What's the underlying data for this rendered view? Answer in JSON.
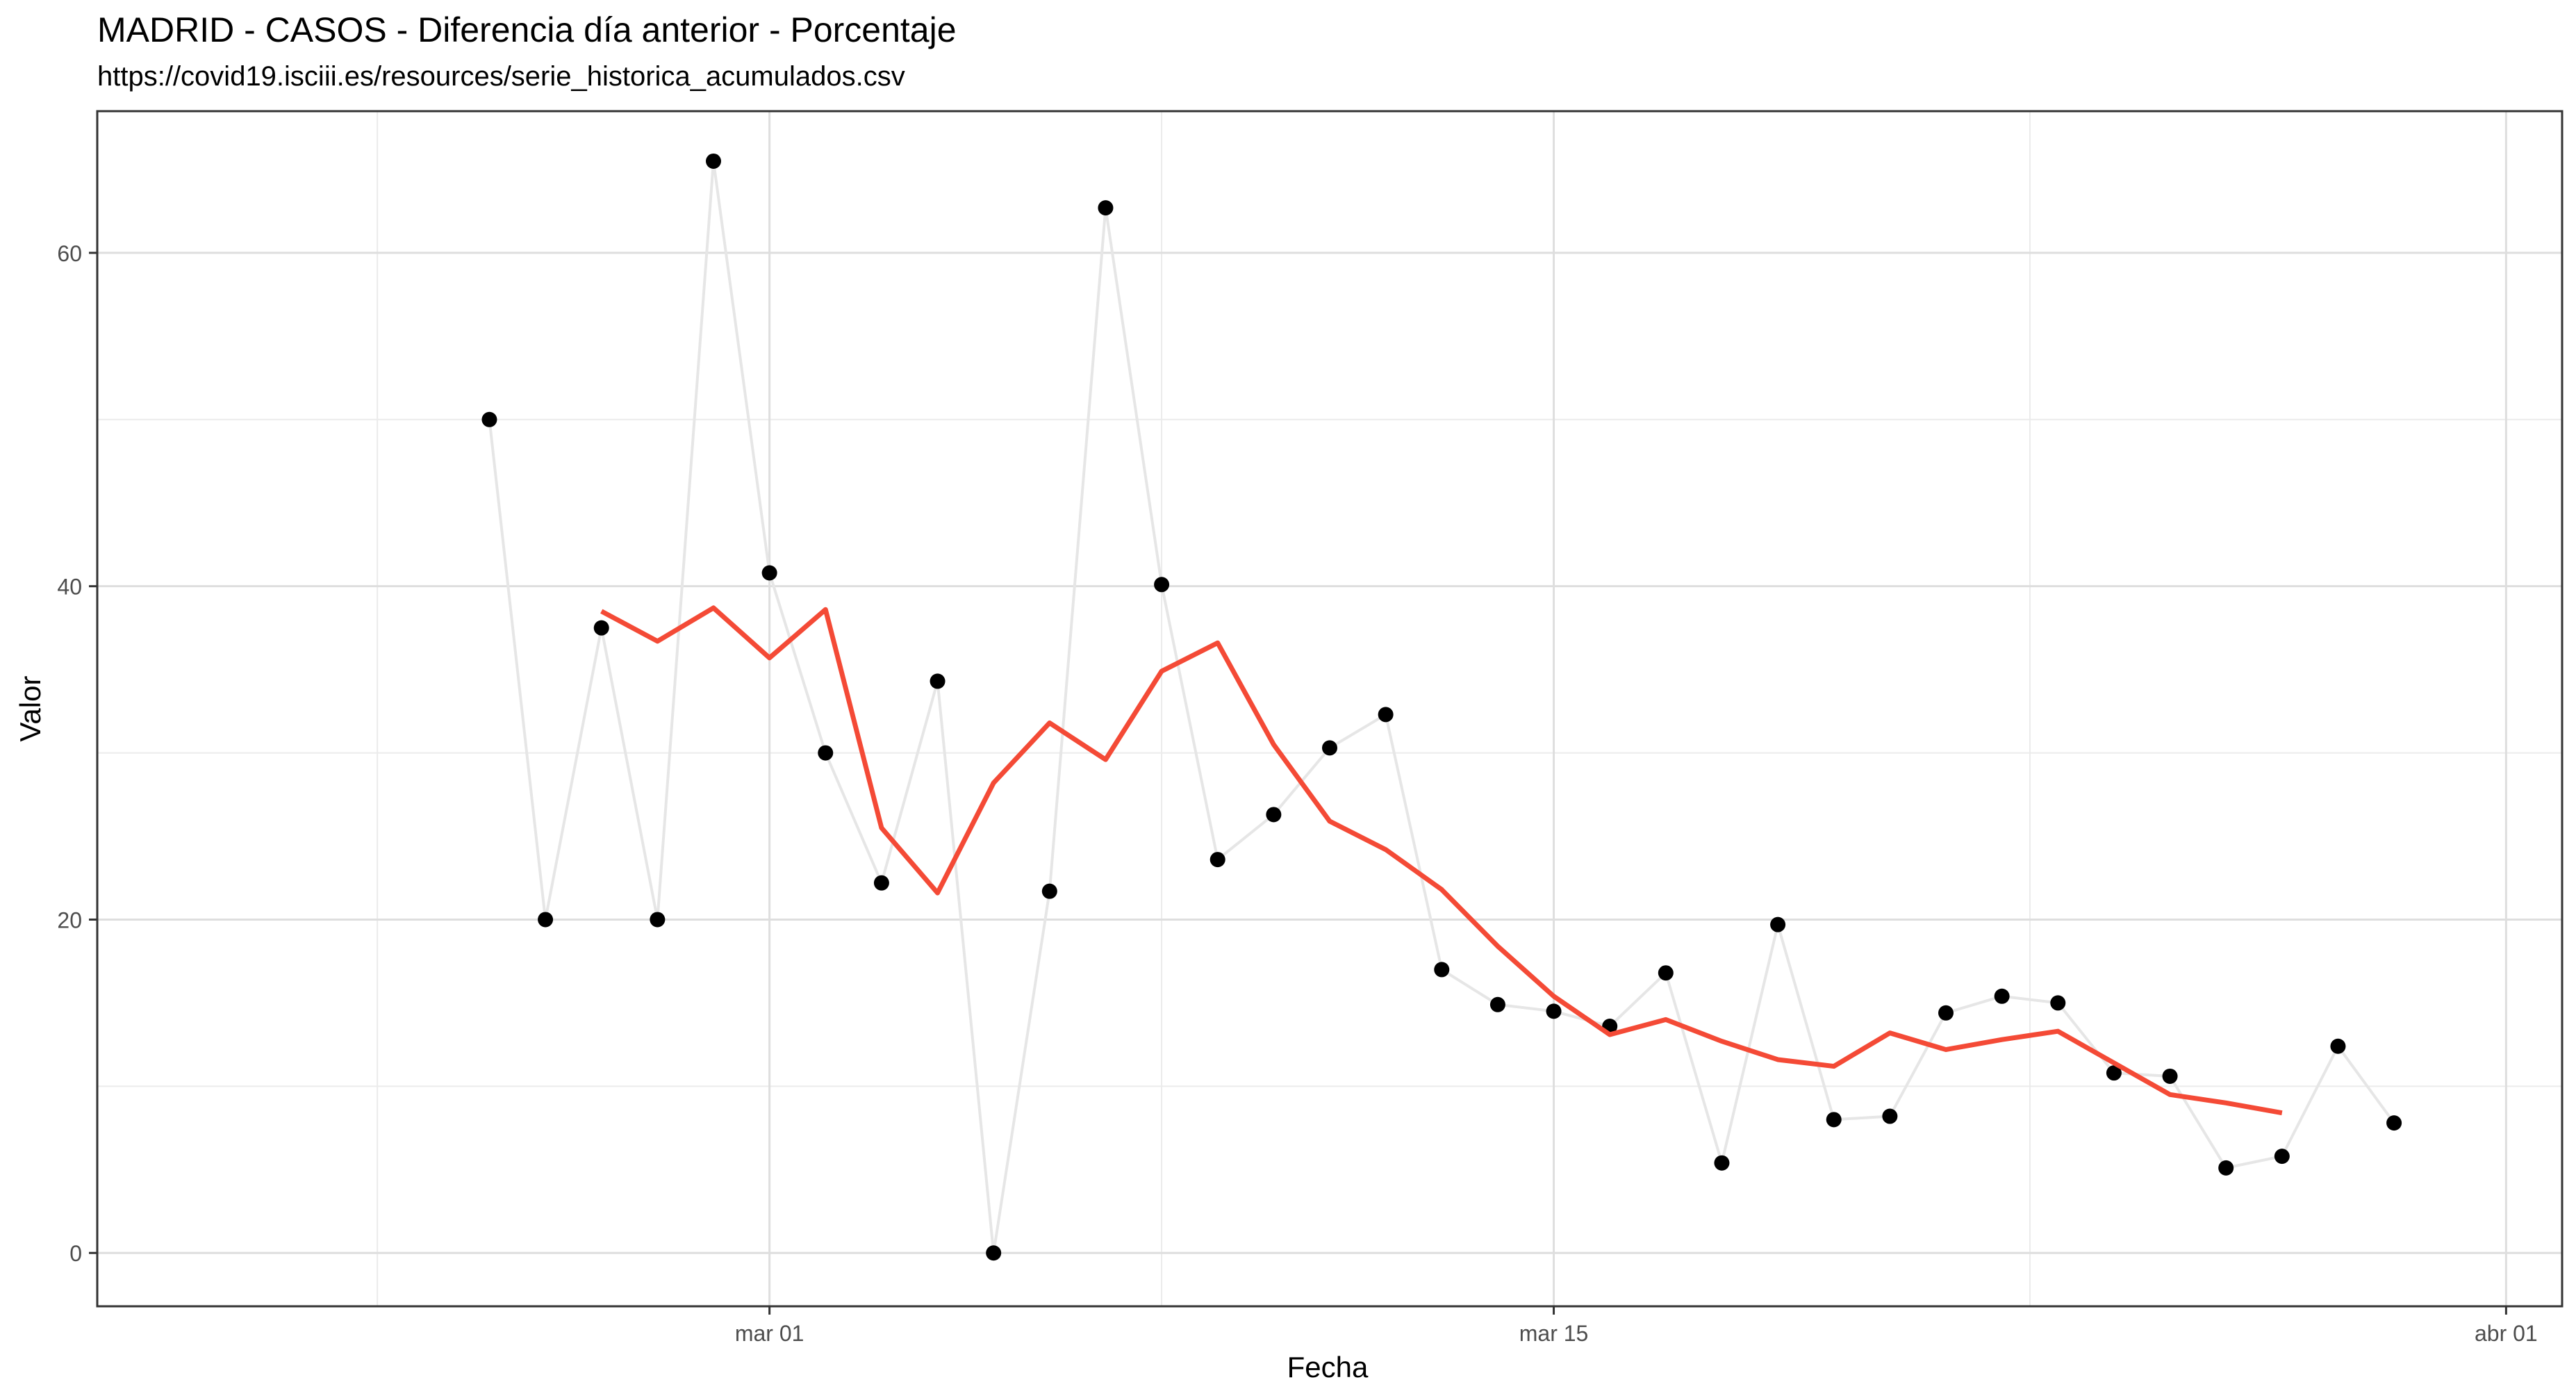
{
  "chart_data": {
    "type": "line",
    "title": "MADRID - CASOS - Diferencia día anterior - Porcentaje",
    "subtitle": "https://covid19.isciii.es/resources/serie_historica_acumulados.csv",
    "xlabel": "Fecha",
    "ylabel": "Valor",
    "x_tick_labels": [
      {
        "date": "2020-03-01",
        "label": "mar 01"
      },
      {
        "date": "2020-03-15",
        "label": "mar 15"
      },
      {
        "date": "2020-04-01",
        "label": "abr 01"
      }
    ],
    "y_ticks": [
      0,
      20,
      40,
      60
    ],
    "xlim": [
      "2020-02-18",
      "2020-04-02"
    ],
    "ylim": [
      -3.2,
      68.5
    ],
    "grid": true,
    "series": [
      {
        "style": "points-with-line",
        "color": "#000000",
        "line_color": "#e6e6e6",
        "points": [
          {
            "x": "2020-02-25",
            "y": 50.0
          },
          {
            "x": "2020-02-26",
            "y": 20.0
          },
          {
            "x": "2020-02-27",
            "y": 37.5
          },
          {
            "x": "2020-02-28",
            "y": 20.0
          },
          {
            "x": "2020-02-29",
            "y": 65.5
          },
          {
            "x": "2020-03-01",
            "y": 40.8
          },
          {
            "x": "2020-03-02",
            "y": 30.0
          },
          {
            "x": "2020-03-03",
            "y": 22.2
          },
          {
            "x": "2020-03-04",
            "y": 34.3
          },
          {
            "x": "2020-03-05",
            "y": 0.0
          },
          {
            "x": "2020-03-06",
            "y": 21.7
          },
          {
            "x": "2020-03-07",
            "y": 62.7
          },
          {
            "x": "2020-03-08",
            "y": 40.1
          },
          {
            "x": "2020-03-09",
            "y": 23.6
          },
          {
            "x": "2020-03-10",
            "y": 26.3
          },
          {
            "x": "2020-03-11",
            "y": 30.3
          },
          {
            "x": "2020-03-12",
            "y": 32.3
          },
          {
            "x": "2020-03-13",
            "y": 17.0
          },
          {
            "x": "2020-03-14",
            "y": 14.9
          },
          {
            "x": "2020-03-15",
            "y": 14.5
          },
          {
            "x": "2020-03-16",
            "y": 13.6
          },
          {
            "x": "2020-03-17",
            "y": 16.8
          },
          {
            "x": "2020-03-18",
            "y": 5.4
          },
          {
            "x": "2020-03-19",
            "y": 19.7
          },
          {
            "x": "2020-03-20",
            "y": 8.0
          },
          {
            "x": "2020-03-21",
            "y": 8.2
          },
          {
            "x": "2020-03-22",
            "y": 14.4
          },
          {
            "x": "2020-03-23",
            "y": 15.4
          },
          {
            "x": "2020-03-24",
            "y": 15.0
          },
          {
            "x": "2020-03-25",
            "y": 10.8
          },
          {
            "x": "2020-03-26",
            "y": 10.6
          },
          {
            "x": "2020-03-27",
            "y": 5.1
          },
          {
            "x": "2020-03-28",
            "y": 5.8
          },
          {
            "x": "2020-03-29",
            "y": 12.4
          },
          {
            "x": "2020-03-30",
            "y": 7.8
          }
        ]
      },
      {
        "style": "line",
        "color": "#f44a36",
        "points": [
          {
            "x": "2020-02-27",
            "y": 38.5
          },
          {
            "x": "2020-02-28",
            "y": 36.7
          },
          {
            "x": "2020-02-29",
            "y": 38.7
          },
          {
            "x": "2020-03-01",
            "y": 35.7
          },
          {
            "x": "2020-03-02",
            "y": 38.6
          },
          {
            "x": "2020-03-03",
            "y": 25.5
          },
          {
            "x": "2020-03-04",
            "y": 21.6
          },
          {
            "x": "2020-03-05",
            "y": 28.2
          },
          {
            "x": "2020-03-06",
            "y": 31.8
          },
          {
            "x": "2020-03-07",
            "y": 29.6
          },
          {
            "x": "2020-03-08",
            "y": 34.9
          },
          {
            "x": "2020-03-09",
            "y": 36.6
          },
          {
            "x": "2020-03-10",
            "y": 30.5
          },
          {
            "x": "2020-03-11",
            "y": 25.9
          },
          {
            "x": "2020-03-12",
            "y": 24.2
          },
          {
            "x": "2020-03-13",
            "y": 21.8
          },
          {
            "x": "2020-03-14",
            "y": 18.4
          },
          {
            "x": "2020-03-15",
            "y": 15.4
          },
          {
            "x": "2020-03-16",
            "y": 13.1
          },
          {
            "x": "2020-03-17",
            "y": 14.0
          },
          {
            "x": "2020-03-18",
            "y": 12.7
          },
          {
            "x": "2020-03-19",
            "y": 11.6
          },
          {
            "x": "2020-03-20",
            "y": 11.2
          },
          {
            "x": "2020-03-21",
            "y": 13.2
          },
          {
            "x": "2020-03-22",
            "y": 12.2
          },
          {
            "x": "2020-03-23",
            "y": 12.8
          },
          {
            "x": "2020-03-24",
            "y": 13.3
          },
          {
            "x": "2020-03-25",
            "y": 11.4
          },
          {
            "x": "2020-03-26",
            "y": 9.5
          },
          {
            "x": "2020-03-27",
            "y": 9.0
          },
          {
            "x": "2020-03-28",
            "y": 8.4
          }
        ]
      }
    ]
  }
}
